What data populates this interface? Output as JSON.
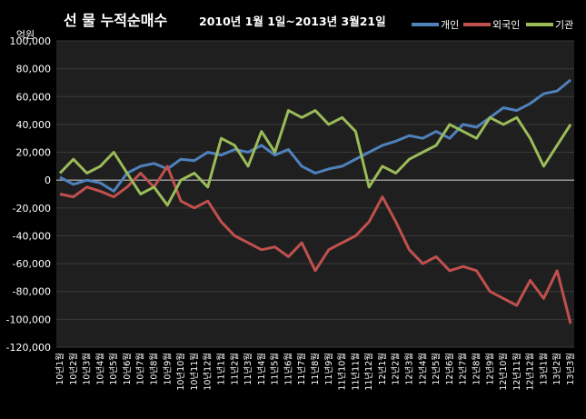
{
  "chart_data": {
    "type": "line",
    "title": "선 물 누적순매수",
    "subtitle": "2010년 1월 1일~2013년 3월21일",
    "ylabel": "억원",
    "ylim": [
      -120000,
      100000
    ],
    "yticks": [
      "100,000",
      "80,000",
      "60,000",
      "40,000",
      "20,000",
      "0",
      "-20,000",
      "-40,000",
      "-60,000",
      "-80,000",
      "-100,000",
      "-120,000"
    ],
    "categories": [
      "10년1월",
      "10년2월",
      "10년3월",
      "10년4월",
      "10년5월",
      "10년6월",
      "10년7월",
      "10년8월",
      "10년9월",
      "10년10월",
      "10년11월",
      "10년12월",
      "11년1월",
      "11년2월",
      "11년3월",
      "11년4월",
      "11년5월",
      "11년6월",
      "11년7월",
      "11년8월",
      "11년9월",
      "11년10월",
      "11년11월",
      "11년12월",
      "12년1월",
      "12년2월",
      "12년3월",
      "12년4월",
      "12년5월",
      "12년6월",
      "12년7월",
      "12년8월",
      "12년9월",
      "12년10월",
      "12년11월",
      "12년12월",
      "13년1월",
      "13년2월",
      "13년3월"
    ],
    "legend_position": "top-right",
    "series": [
      {
        "name": "개인",
        "color": "#4f81bd",
        "values": [
          2000,
          -3000,
          0,
          -2000,
          -8000,
          5000,
          10000,
          12000,
          8000,
          15000,
          14000,
          20000,
          18000,
          22000,
          20000,
          25000,
          18000,
          22000,
          10000,
          5000,
          8000,
          10000,
          15000,
          20000,
          25000,
          28000,
          32000,
          30000,
          35000,
          30000,
          40000,
          38000,
          45000,
          52000,
          50000,
          55000,
          62000,
          64000,
          72000
        ]
      },
      {
        "name": "외국인",
        "color": "#c0504d",
        "values": [
          -10000,
          -12000,
          -5000,
          -8000,
          -12000,
          -5000,
          5000,
          -5000,
          10000,
          -15000,
          -20000,
          -15000,
          -30000,
          -40000,
          -45000,
          -50000,
          -48000,
          -55000,
          -45000,
          -65000,
          -50000,
          -45000,
          -40000,
          -30000,
          -12000,
          -30000,
          -50000,
          -60000,
          -55000,
          -65000,
          -62000,
          -65000,
          -80000,
          -85000,
          -90000,
          -72000,
          -85000,
          -65000,
          -103000
        ]
      },
      {
        "name": "기관",
        "color": "#9bbb59",
        "values": [
          5000,
          15000,
          5000,
          10000,
          20000,
          5000,
          -10000,
          -5000,
          -18000,
          0,
          5000,
          -5000,
          30000,
          25000,
          10000,
          35000,
          20000,
          50000,
          45000,
          50000,
          40000,
          45000,
          35000,
          -5000,
          10000,
          5000,
          15000,
          20000,
          25000,
          40000,
          35000,
          30000,
          45000,
          40000,
          45000,
          30000,
          10000,
          25000,
          40000
        ]
      }
    ]
  }
}
